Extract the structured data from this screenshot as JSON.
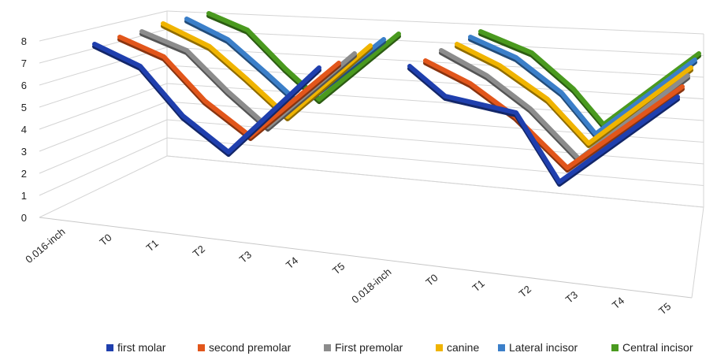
{
  "chart_data": {
    "type": "line",
    "style": "3d-line",
    "categories": [
      "0.016-inch",
      "T0",
      "T1",
      "T2",
      "T3",
      "T4",
      "T5",
      "0.018-inch",
      "T0",
      "T1",
      "T2",
      "T3",
      "T4",
      "T5"
    ],
    "ylim": [
      0,
      8
    ],
    "yticks": [
      "0",
      "1",
      "2",
      "3",
      "4",
      "5",
      "6",
      "7",
      "8"
    ],
    "grid": true,
    "legend_position": "bottom",
    "series": [
      {
        "name": "first molar",
        "color": "#1f3fae"
      },
      {
        "name": "second premolar",
        "color": "#e2561b"
      },
      {
        "name": "First premolar",
        "color": "#8c8c8c"
      },
      {
        "name": "canine",
        "color": "#f0b400"
      },
      {
        "name": "Lateral incisor",
        "color": "#3b7fc9"
      },
      {
        "name": "Central incisor",
        "color": "#4a9a1f"
      }
    ]
  }
}
